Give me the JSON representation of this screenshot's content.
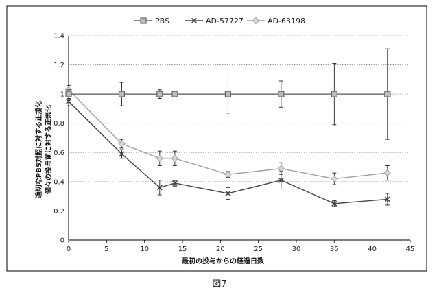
{
  "figure_caption": "図7",
  "chart_data": {
    "type": "line",
    "xlabel": "最初の投与からの経過日数",
    "ylabel_lines": [
      "適切なPBS対照に対する正規化",
      "個々の投与前に対する正規化"
    ],
    "xlim": [
      0,
      45
    ],
    "ylim": [
      0,
      1.4
    ],
    "xticks": [
      0,
      5,
      10,
      15,
      20,
      25,
      30,
      35,
      40,
      45
    ],
    "yticks": [
      0,
      0.2,
      0.4,
      0.6,
      0.8,
      1,
      1.2,
      1.4
    ],
    "xtick_labels": [
      "0",
      "5",
      "10",
      "15",
      "20",
      "25",
      "30",
      "35",
      "40",
      "45"
    ],
    "ytick_labels": [
      "0",
      "0.2",
      "0.4",
      "0.6",
      "0.8",
      "1",
      "1.2",
      "1.4"
    ],
    "grid": "horizontal",
    "legend_position": "top-center",
    "series": [
      {
        "name": "PBS",
        "color": "#666666",
        "marker": "square",
        "x": [
          0,
          7,
          12,
          14,
          21,
          28,
          35,
          42
        ],
        "y": [
          1.0,
          1.0,
          1.0,
          1.0,
          1.0,
          1.0,
          1.0,
          1.0
        ],
        "err": [
          0.03,
          0.08,
          0.03,
          0.02,
          0.13,
          0.09,
          0.21,
          0.31
        ]
      },
      {
        "name": "AD-57727",
        "color": "#444444",
        "marker": "x",
        "x": [
          0,
          7,
          12,
          14,
          21,
          28,
          35,
          42
        ],
        "y": [
          0.95,
          0.59,
          0.36,
          0.39,
          0.32,
          0.41,
          0.25,
          0.28
        ],
        "err": [
          0.03,
          0.03,
          0.05,
          0.02,
          0.04,
          0.06,
          0.02,
          0.04
        ]
      },
      {
        "name": "AD-63198",
        "color": "#a0a0a0",
        "marker": "diamond",
        "x": [
          0,
          7,
          12,
          14,
          21,
          28,
          35,
          42
        ],
        "y": [
          1.03,
          0.66,
          0.56,
          0.56,
          0.45,
          0.49,
          0.42,
          0.46
        ],
        "err": [
          0.03,
          0.03,
          0.05,
          0.05,
          0.02,
          0.04,
          0.04,
          0.05
        ]
      }
    ]
  }
}
